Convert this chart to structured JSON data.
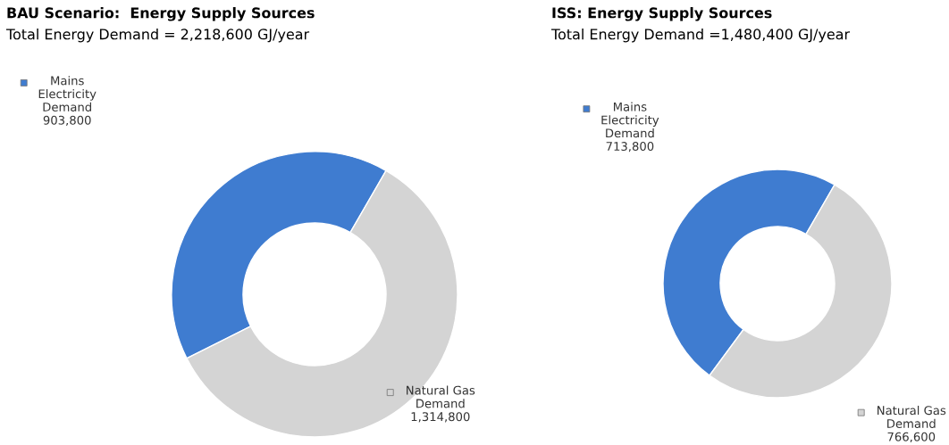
{
  "chart_data": [
    {
      "type": "donut",
      "title": "BAU Scenario:  Energy Supply Sources",
      "subtitle": "Total Energy Demand = 2,218,600 GJ/year",
      "categories": [
        "Mains\nElectricity\nDemand",
        "Natural Gas\nDemand"
      ],
      "values": [
        903800,
        1314800
      ],
      "value_labels": [
        "903,800",
        "1,314,800"
      ],
      "legend": "top left",
      "colors": [
        "#3f7cd0",
        "#d4d4d4"
      ]
    },
    {
      "type": "donut",
      "title": "ISS: Energy Supply Sources",
      "subtitle": "Total Energy Demand =1,480,400 GJ/year",
      "categories": [
        "Mains\nElectricity\nDemand",
        "Natural Gas\nDemand"
      ],
      "values": [
        713800,
        766600
      ],
      "value_labels": [
        "713,800",
        "766,600"
      ],
      "legend": "top left",
      "colors": [
        "#3f7cd0",
        "#d4d4d4"
      ]
    }
  ]
}
